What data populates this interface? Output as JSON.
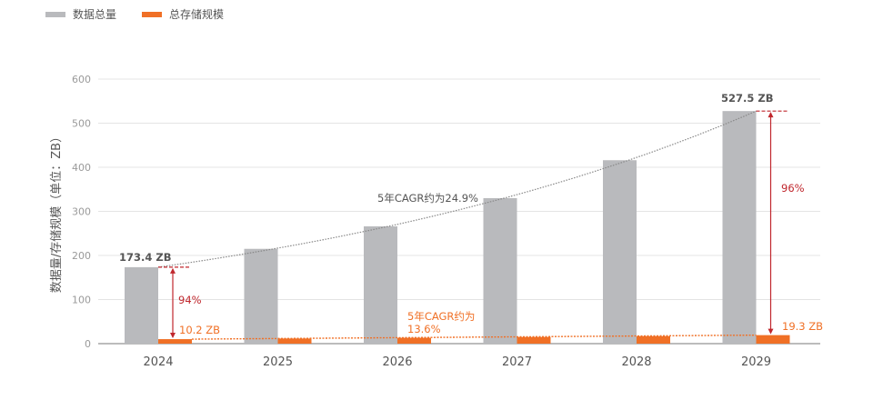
{
  "colors": {
    "total": "#b9babd",
    "storage": "#f07026",
    "annotation": "#c0272d",
    "grid": "#e4e4e4",
    "axis": "#bcbcbc"
  },
  "legend": [
    {
      "label": "数据总量",
      "color": "#b9babd"
    },
    {
      "label": "总存储规模",
      "color": "#f07026"
    }
  ],
  "chart_data": {
    "type": "bar",
    "title": "",
    "xlabel": "",
    "ylabel": "数据量/存储规模（单位：ZB）",
    "ylim": [
      0,
      600
    ],
    "yticks": [
      0,
      100,
      200,
      300,
      400,
      500,
      600
    ],
    "grid": true,
    "legend_position": "top-left",
    "categories": [
      "2024",
      "2025",
      "2026",
      "2027",
      "2028",
      "2029"
    ],
    "series": [
      {
        "name": "数据总量",
        "values": [
          173.4,
          215,
          266,
          330,
          416,
          527.5
        ]
      },
      {
        "name": "总存储规模",
        "values": [
          10.2,
          11.6,
          13.2,
          15,
          17,
          19.3
        ]
      }
    ],
    "annotations": {
      "total_first_label": "173.4 ZB",
      "total_last_label": "527.5 ZB",
      "storage_first_label": "10.2 ZB",
      "storage_last_label": "19.3 ZB",
      "gap_first_pct": "94%",
      "gap_last_pct": "96%",
      "total_cagr": "5年CAGR约为24.9%",
      "storage_cagr_line1": "5年CAGR约为",
      "storage_cagr_line2": "13.6%"
    }
  }
}
